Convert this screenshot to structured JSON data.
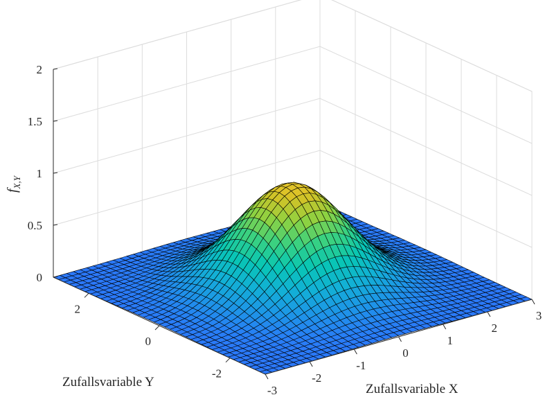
{
  "chart_data": {
    "type": "surface",
    "surface": "bivariate standard normal density scaled to peak 1: f(x,y) = exp(-(x^2+y^2)/2)",
    "grid": {
      "x_min": -3,
      "x_max": 3,
      "y_min": -3,
      "y_max": 3,
      "points_per_axis": 41
    },
    "peak": {
      "x": 0,
      "y": 0,
      "z": 1.0
    },
    "xlim": [
      -3,
      3
    ],
    "ylim": [
      -3,
      3
    ],
    "zlim": [
      0,
      2
    ],
    "x_ticks": [
      "-3",
      "-2",
      "-1",
      "0",
      "1",
      "2",
      "3"
    ],
    "y_ticks": [
      "-2",
      "0",
      "2"
    ],
    "z_ticks": [
      "0",
      "0.5",
      "1",
      "1.5",
      "2"
    ],
    "xlabel": "Zufallsvariable X",
    "ylabel": "Zufallsvariable Y",
    "zlabel_main": "f",
    "zlabel_sub": "X,Y",
    "colormap": "parula",
    "grid_on": true
  }
}
